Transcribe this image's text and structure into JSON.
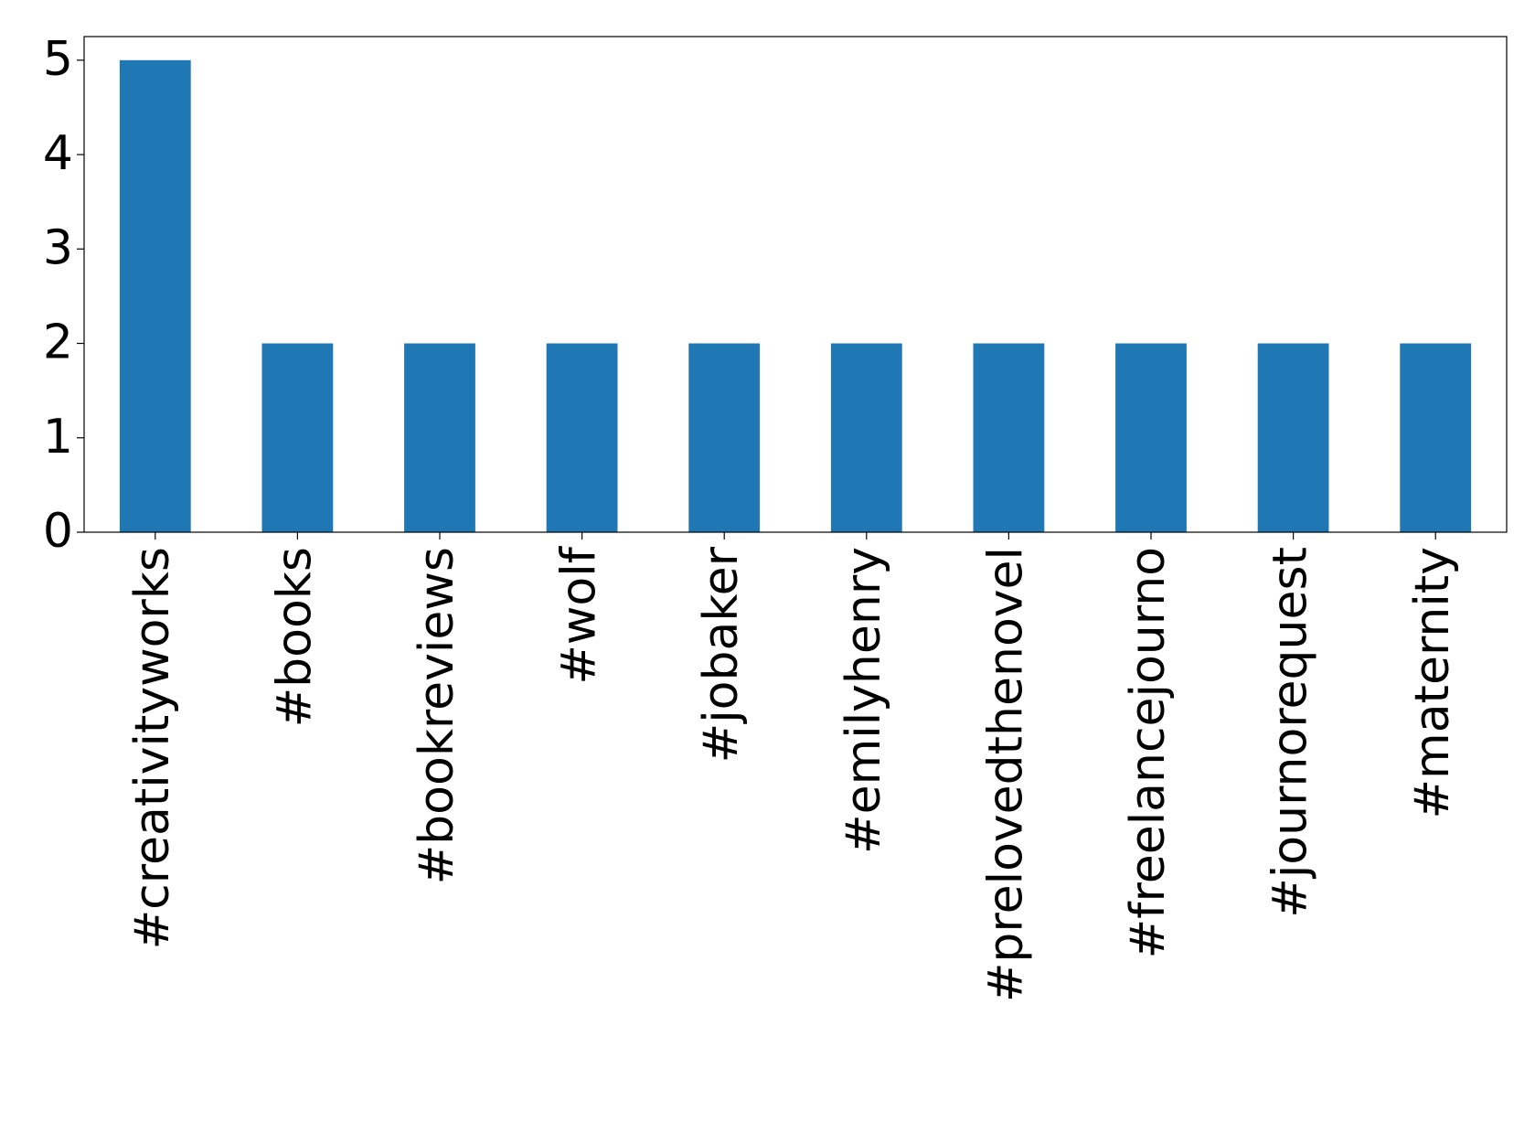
{
  "chart_data": {
    "type": "bar",
    "categories": [
      "#creativityworks",
      "#books",
      "#bookreviews",
      "#wolf",
      "#jobaker",
      "#emilyhenry",
      "#prelovedthenovel",
      "#freelancejourno",
      "#journorequest",
      "#maternity"
    ],
    "values": [
      5,
      2,
      2,
      2,
      2,
      2,
      2,
      2,
      2,
      2
    ],
    "color": "#1f77b4",
    "ylim": [
      0,
      5.25
    ],
    "yticks": [
      0,
      1,
      2,
      3,
      4,
      5
    ],
    "grid": false
  }
}
